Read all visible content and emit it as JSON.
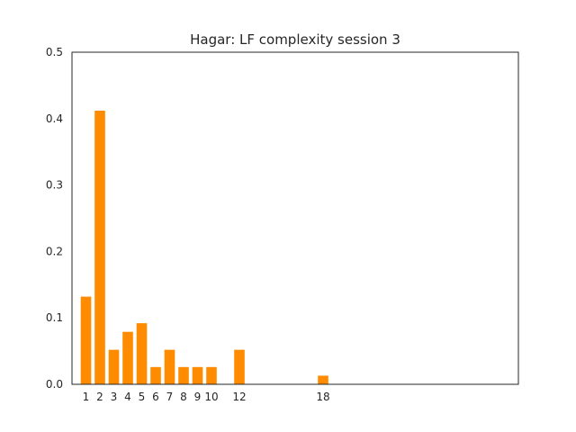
{
  "chart_data": {
    "type": "bar",
    "title": "Hagar: LF complexity session 3",
    "xlabel": "",
    "ylabel": "",
    "x": [
      1,
      2,
      3,
      4,
      5,
      6,
      7,
      8,
      9,
      10,
      12,
      18
    ],
    "values": [
      0.132,
      0.412,
      0.052,
      0.079,
      0.092,
      0.026,
      0.052,
      0.026,
      0.026,
      0.026,
      0.052,
      0.013
    ],
    "xlim": [
      0,
      32
    ],
    "ylim": [
      0,
      0.5
    ],
    "yticks": [
      "0.0",
      "0.1",
      "0.2",
      "0.3",
      "0.4",
      "0.5"
    ],
    "xtick_labels": [
      "1",
      "2",
      "3",
      "4",
      "5",
      "6",
      "7",
      "8",
      "9",
      "10",
      "12",
      "18"
    ],
    "bar_color": "#ff8c00",
    "grid": false,
    "legend": "none"
  }
}
